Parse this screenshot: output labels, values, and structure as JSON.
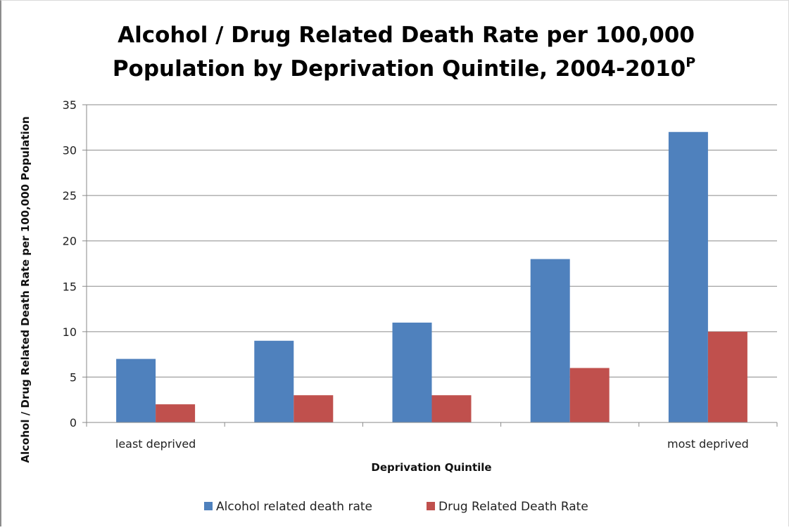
{
  "chart_data": {
    "type": "bar",
    "title_line1": "Alcohol / Drug Related Death Rate per 100,000",
    "title_line2": "Population by Deprivation Quintile, 2004-2010",
    "title_superscript": "P",
    "xlabel": "Deprivation Quintile",
    "ylabel": "Alcohol / Drug Related Death Rate per 100,000 Population",
    "categories": [
      "least deprived",
      "",
      "",
      "",
      "most deprived"
    ],
    "series": [
      {
        "name": "Alcohol related death rate",
        "color": "#4f81bd",
        "values": [
          7,
          9,
          11,
          18,
          32
        ]
      },
      {
        "name": "Drug Related Death Rate",
        "color": "#c0504d",
        "values": [
          2,
          3,
          3,
          6,
          10
        ]
      }
    ],
    "ylim": [
      0,
      35
    ],
    "yticks": [
      0,
      5,
      10,
      15,
      20,
      25,
      30,
      35
    ],
    "grid": true,
    "legend_position": "bottom"
  }
}
